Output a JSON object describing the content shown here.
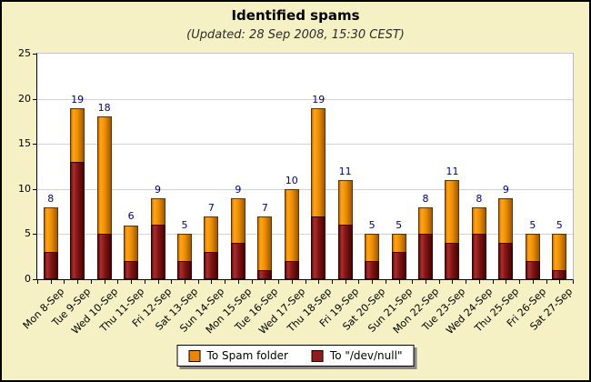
{
  "title": "Identified spams",
  "subtitle": "(Updated: 28 Sep 2008, 15:30 CEST)",
  "colors": {
    "background": "#f5f1c5",
    "plot_background": "#ffffff",
    "gridline": "#d2d2d2",
    "value_label": "#000080",
    "spam_folder": "#e8860a",
    "dev_null": "#8f1d1d"
  },
  "legend": {
    "items": [
      {
        "label": "To Spam folder",
        "color": "#e8860a",
        "series": "spam_folder"
      },
      {
        "label": "To \"/dev/null\"",
        "color": "#8f1d1d",
        "series": "dev_null"
      }
    ]
  },
  "axes": {
    "y_ticks": [
      0,
      5,
      10,
      15,
      20,
      25
    ],
    "y_max": 25
  },
  "chart_data": {
    "type": "bar",
    "stacked": true,
    "title": "Identified spams",
    "subtitle": "(Updated: 28 Sep 2008, 15:30 CEST)",
    "xlabel": "",
    "ylabel": "",
    "ylim": [
      0,
      25
    ],
    "grid": true,
    "legend_position": "bottom",
    "categories": [
      "Mon 8-Sep",
      "Tue 9-Sep",
      "Wed 10-Sep",
      "Thu 11-Sep",
      "Fri 12-Sep",
      "Sat 13-Sep",
      "Sun 14-Sep",
      "Mon 15-Sep",
      "Tue 16-Sep",
      "Wed 17-Sep",
      "Thu 18-Sep",
      "Fri 19-Sep",
      "Sat 20-Sep",
      "Sun 21-Sep",
      "Mon 22-Sep",
      "Tue 23-Sep",
      "Wed 24-Sep",
      "Thu 25-Sep",
      "Fri 26-Sep",
      "Sat 27-Sep"
    ],
    "series": [
      {
        "name": "To \"/dev/null\"",
        "color": "#8f1d1d",
        "values": [
          3,
          13,
          5,
          2,
          6,
          2,
          3,
          4,
          1,
          2,
          7,
          6,
          2,
          3,
          5,
          4,
          5,
          4,
          2,
          1
        ]
      },
      {
        "name": "To Spam folder",
        "color": "#e8860a",
        "values": [
          5,
          6,
          13,
          4,
          3,
          3,
          4,
          5,
          6,
          8,
          12,
          5,
          3,
          2,
          3,
          7,
          3,
          5,
          3,
          4
        ]
      }
    ],
    "totals": [
      8,
      19,
      18,
      6,
      9,
      5,
      7,
      9,
      7,
      10,
      19,
      11,
      5,
      5,
      8,
      11,
      8,
      9,
      5,
      5
    ]
  }
}
